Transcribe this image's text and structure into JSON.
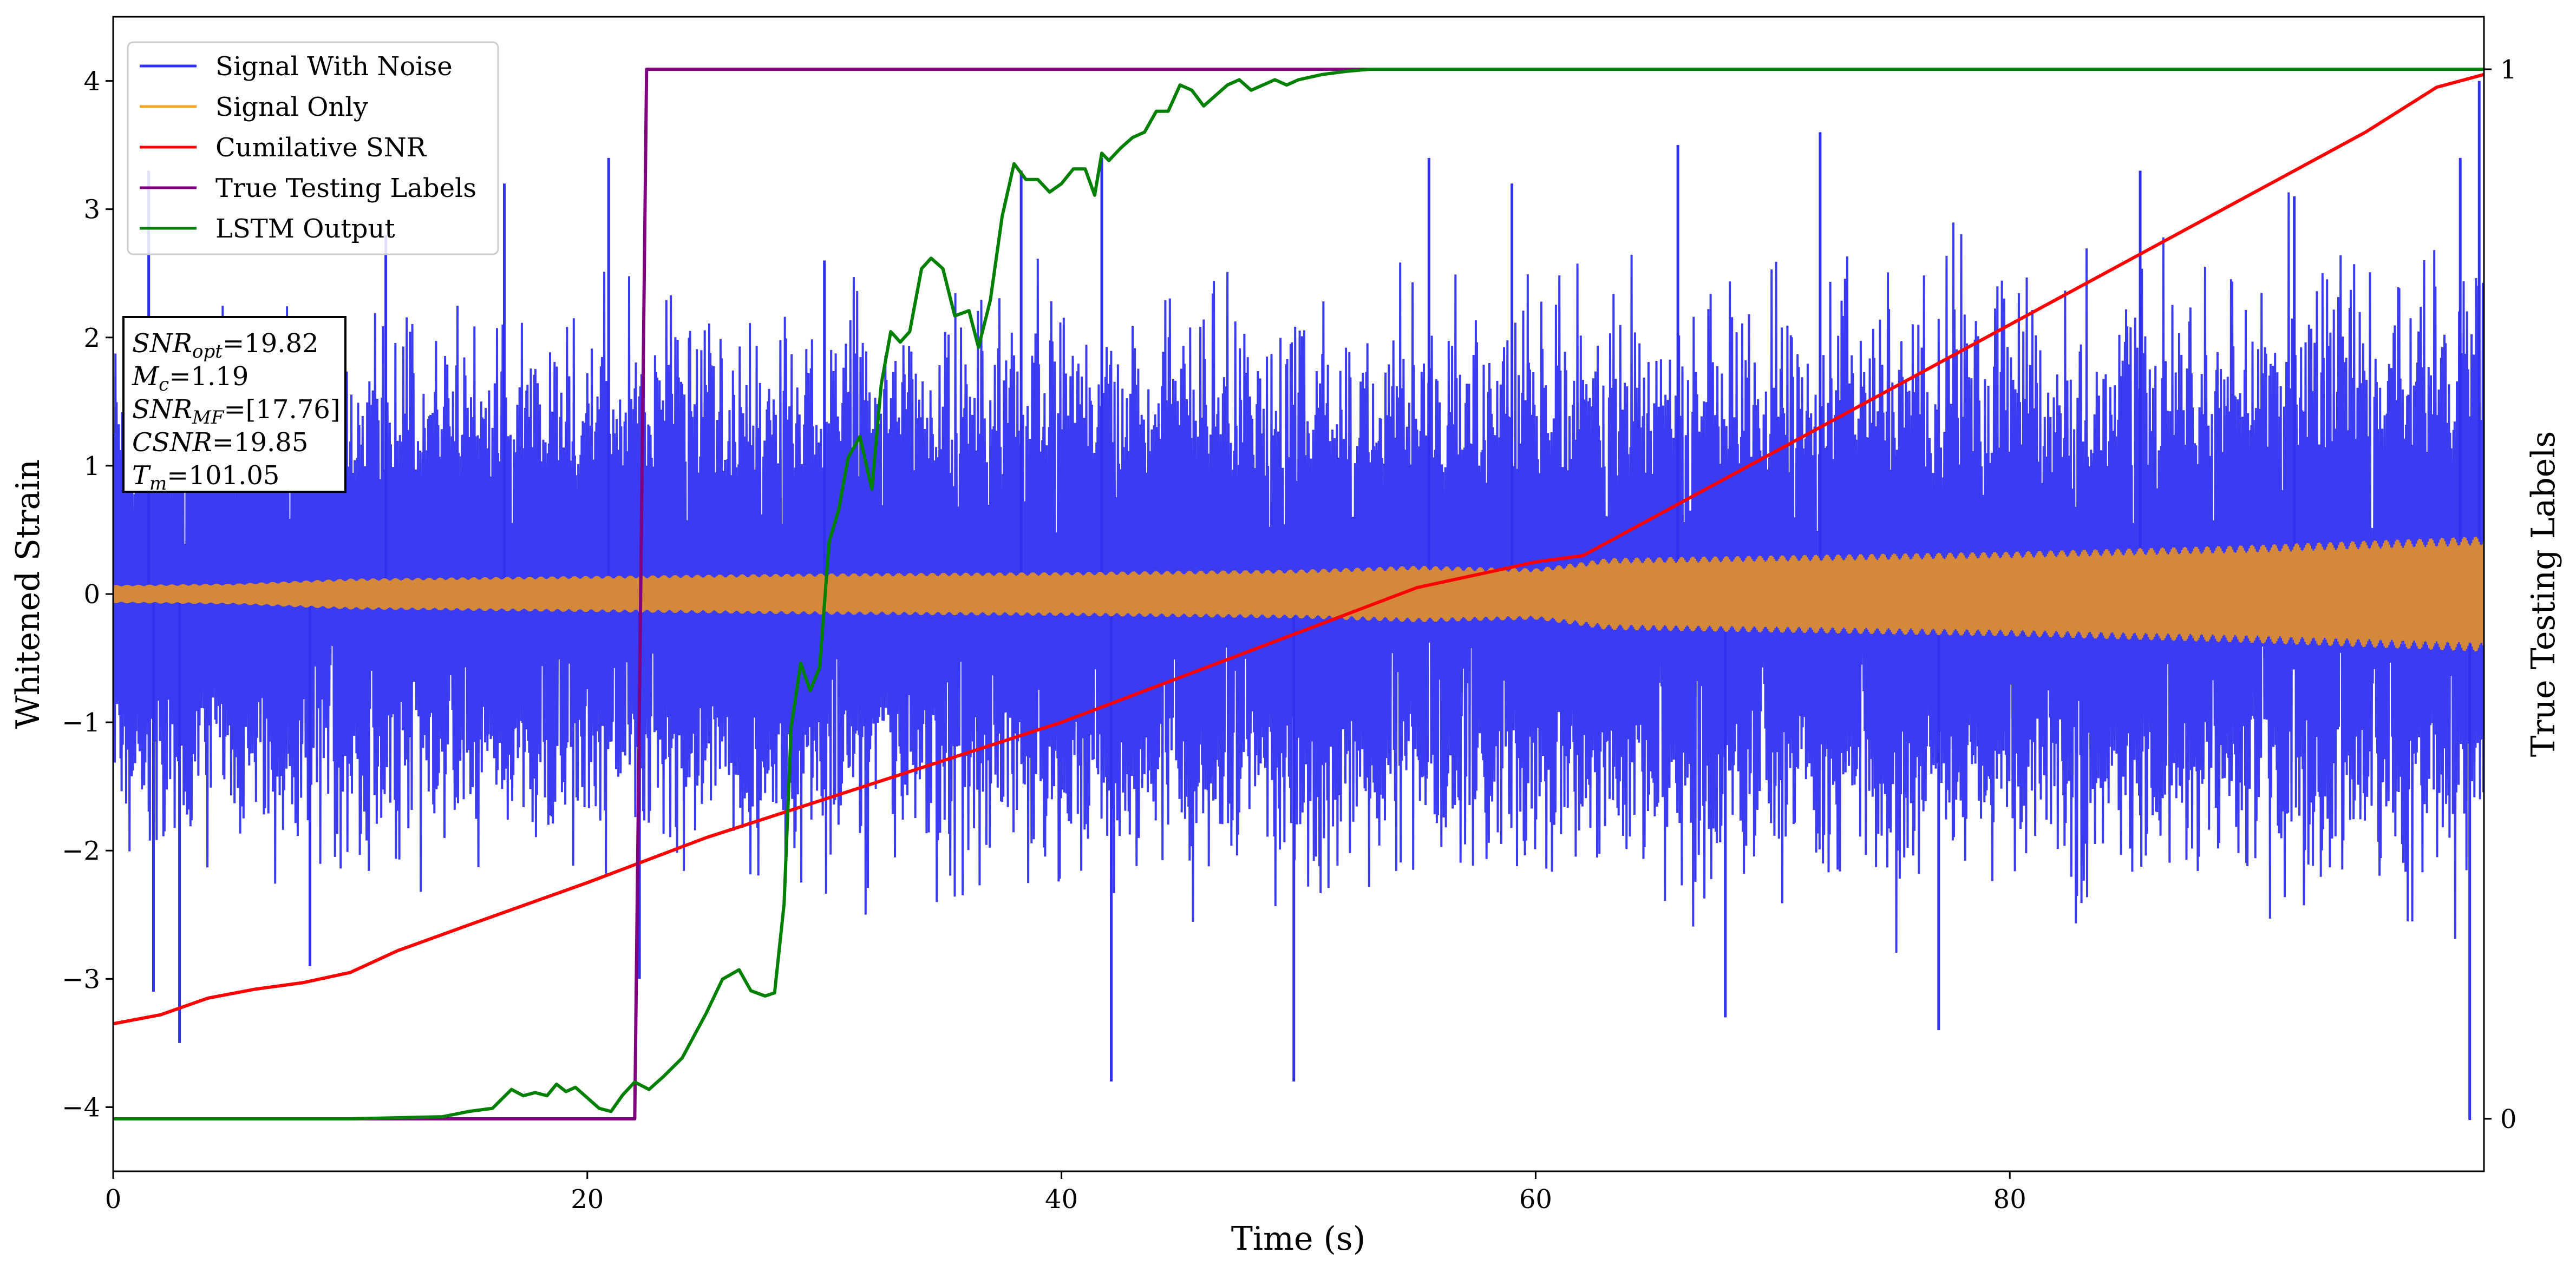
{
  "chart_data": {
    "type": "line",
    "xlabel": "Time (s)",
    "ylabel": "Whitened Strain",
    "y2label": "True Testing Labels",
    "xlim": [
      0,
      100
    ],
    "ylim": [
      -4.5,
      4.5
    ],
    "y2lim": [
      -0.05,
      1.05
    ],
    "x_ticks": [
      0,
      20,
      40,
      60,
      80
    ],
    "y_ticks": [
      -4,
      -3,
      -2,
      -1,
      0,
      1,
      2,
      3,
      4
    ],
    "y2_ticks": [
      0,
      1
    ],
    "grid": false,
    "legend_position": "top-left",
    "legend": {
      "noise": "Signal With Noise",
      "signal": "Signal Only",
      "csnr": "Cumilative SNR",
      "labels": "True Testing Labels",
      "lstm": "LSTM Output"
    },
    "info_box": {
      "snr_opt": {
        "symbol": "SNR",
        "sub": "opt",
        "value": "=19.82"
      },
      "mc": {
        "symbol": "M",
        "sub": "c",
        "value": "=1.19"
      },
      "snr_mf": {
        "symbol": "SNR",
        "sub": "MF",
        "value": "=[17.76]"
      },
      "csnr": {
        "symbol": "CSNR",
        "sub": "",
        "value": "=19.85"
      },
      "tm": {
        "symbol": "T",
        "sub": "m",
        "value": "=101.05"
      }
    },
    "colors": {
      "noise": "#3030f0",
      "signal": "#f5a623",
      "signal_overlap": "#d4883a",
      "csnr": "#ff0000",
      "labels": "#800080",
      "lstm": "#008000"
    },
    "series": [
      {
        "name": "Signal With Noise",
        "axis": "left",
        "note": "dense noisy strain, approximate envelope",
        "envelope_x": [
          0,
          10,
          20,
          30,
          40,
          50,
          60,
          70,
          80,
          90,
          100
        ],
        "envelope_upper": [
          2.2,
          2.4,
          2.5,
          2.6,
          2.6,
          2.6,
          2.6,
          2.7,
          2.8,
          2.9,
          3.0
        ],
        "envelope_lower": [
          -2.2,
          -2.3,
          -2.4,
          -2.5,
          -2.5,
          -2.6,
          -2.6,
          -2.6,
          -2.7,
          -2.7,
          -2.8
        ],
        "spikes": [
          {
            "x": 1.5,
            "y": 3.3
          },
          {
            "x": 2.8,
            "y": -3.5
          },
          {
            "x": 1.7,
            "y": -3.1
          },
          {
            "x": 8.3,
            "y": -2.9
          },
          {
            "x": 11.5,
            "y": 2.8
          },
          {
            "x": 16.5,
            "y": 3.2
          },
          {
            "x": 20.9,
            "y": 3.4
          },
          {
            "x": 22.2,
            "y": -3.0
          },
          {
            "x": 30.0,
            "y": 2.6
          },
          {
            "x": 38.3,
            "y": 3.3
          },
          {
            "x": 41.7,
            "y": 3.4
          },
          {
            "x": 42.1,
            "y": -3.8
          },
          {
            "x": 49.8,
            "y": -3.8
          },
          {
            "x": 55.5,
            "y": 3.4
          },
          {
            "x": 59.0,
            "y": 3.2
          },
          {
            "x": 66.0,
            "y": 3.5
          },
          {
            "x": 68.0,
            "y": -3.3
          },
          {
            "x": 72.0,
            "y": 3.6
          },
          {
            "x": 77.0,
            "y": -3.4
          },
          {
            "x": 85.5,
            "y": 3.3
          },
          {
            "x": 92.0,
            "y": 3.1
          },
          {
            "x": 99.0,
            "y": 3.4
          },
          {
            "x": 99.4,
            "y": -4.1
          },
          {
            "x": 99.8,
            "y": 4.0
          }
        ]
      },
      {
        "name": "Signal Only",
        "axis": "left",
        "envelope_x": [
          0,
          5,
          10,
          20,
          30,
          40,
          50,
          55,
          60,
          62,
          63,
          70,
          80,
          90,
          100
        ],
        "amplitude": [
          0.07,
          0.08,
          0.12,
          0.14,
          0.16,
          0.17,
          0.19,
          0.22,
          0.2,
          0.25,
          0.28,
          0.3,
          0.33,
          0.38,
          0.45
        ]
      },
      {
        "name": "Cumilative SNR",
        "axis": "left",
        "x": [
          0,
          2,
          4,
          6,
          8,
          10,
          12,
          15,
          20,
          25,
          30,
          35,
          40,
          45,
          50,
          55,
          60,
          62,
          65,
          70,
          75,
          80,
          85,
          90,
          95,
          98,
          100
        ],
        "y": [
          -3.35,
          -3.28,
          -3.15,
          -3.08,
          -3.03,
          -2.95,
          -2.78,
          -2.58,
          -2.25,
          -1.9,
          -1.6,
          -1.3,
          -1.0,
          -0.65,
          -0.3,
          0.05,
          0.25,
          0.3,
          0.6,
          1.1,
          1.6,
          2.1,
          2.6,
          3.1,
          3.6,
          3.95,
          4.05
        ]
      },
      {
        "name": "True Testing Labels",
        "axis": "right",
        "x": [
          0,
          22.0,
          22.5,
          100
        ],
        "y": [
          0,
          0,
          1,
          1
        ]
      },
      {
        "name": "LSTM Output",
        "axis": "right",
        "x": [
          0,
          10,
          13.9,
          15,
          16,
          16.8,
          17.3,
          17.8,
          18.3,
          18.7,
          19.1,
          19.5,
          20,
          20.5,
          21,
          21.5,
          22,
          22.6,
          23.2,
          24,
          25,
          25.7,
          26.4,
          26.9,
          27.5,
          27.9,
          28.3,
          28.6,
          29.0,
          29.4,
          29.8,
          30.2,
          30.6,
          31,
          31.5,
          32,
          32.4,
          32.8,
          33.2,
          33.6,
          34.1,
          34.5,
          35,
          35.5,
          36.1,
          36.5,
          37,
          37.5,
          38,
          38.5,
          39,
          39.5,
          40,
          40.5,
          41,
          41.4,
          41.7,
          42,
          42.5,
          43,
          43.5,
          44,
          44.5,
          45,
          45.5,
          46,
          46.5,
          47,
          47.5,
          48,
          48.5,
          49,
          49.5,
          50,
          51,
          52,
          53,
          54,
          55,
          56,
          58,
          60,
          65,
          70,
          100
        ],
        "y": [
          0,
          0,
          0.002,
          0.007,
          0.01,
          0.028,
          0.022,
          0.025,
          0.022,
          0.033,
          0.026,
          0.03,
          0.02,
          0.01,
          0.007,
          0.023,
          0.035,
          0.028,
          0.04,
          0.058,
          0.1,
          0.133,
          0.142,
          0.122,
          0.117,
          0.12,
          0.205,
          0.374,
          0.434,
          0.408,
          0.43,
          0.55,
          0.58,
          0.63,
          0.65,
          0.6,
          0.7,
          0.75,
          0.74,
          0.75,
          0.81,
          0.82,
          0.81,
          0.765,
          0.77,
          0.735,
          0.78,
          0.86,
          0.91,
          0.895,
          0.895,
          0.883,
          0.891,
          0.905,
          0.905,
          0.88,
          0.92,
          0.913,
          0.925,
          0.935,
          0.94,
          0.96,
          0.96,
          0.985,
          0.98,
          0.965,
          0.975,
          0.985,
          0.99,
          0.98,
          0.985,
          0.99,
          0.985,
          0.99,
          0.995,
          0.998,
          1.0,
          1.0,
          1.0,
          1.0,
          1.0,
          1.0,
          1.0,
          1.0,
          1.0
        ]
      }
    ]
  }
}
